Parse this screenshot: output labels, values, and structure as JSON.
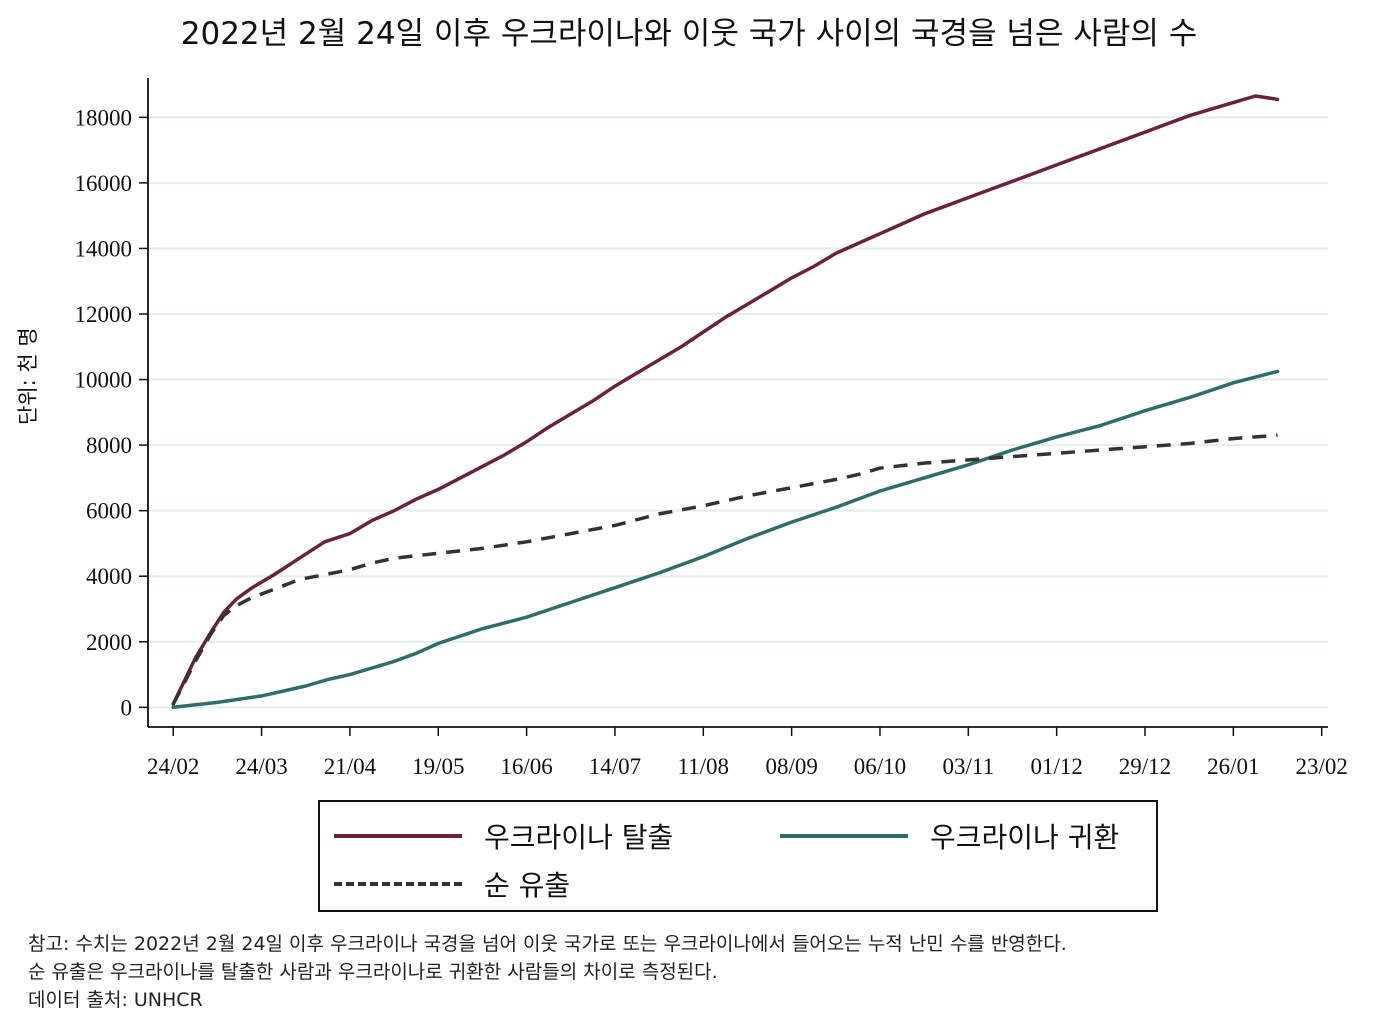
{
  "chart_data": {
    "type": "line",
    "title": "2022년 2월 24일 이후 우크라이나와 이웃 국가 사이의 국경을 넘은 사람의 수",
    "ylabel": "단위: 천 명",
    "xlabel": "",
    "x_tick_labels": [
      "24/02",
      "24/03",
      "21/04",
      "19/05",
      "16/06",
      "14/07",
      "11/08",
      "08/09",
      "06/10",
      "03/11",
      "01/12",
      "29/12",
      "26/01",
      "23/02"
    ],
    "x_tick_days": [
      0,
      28,
      56,
      84,
      112,
      140,
      168,
      196,
      224,
      252,
      280,
      308,
      336,
      364
    ],
    "y_ticks": [
      0,
      2000,
      4000,
      6000,
      8000,
      10000,
      12000,
      14000,
      16000,
      18000
    ],
    "ylim": [
      -600,
      19200
    ],
    "xlim_days": [
      -8,
      366
    ],
    "grid": true,
    "legend_position": "bottom",
    "series": [
      {
        "name": "우크라이나 탈출",
        "color": "#6b2141",
        "dash": "solid",
        "x": [
          0,
          3,
          7,
          12,
          16,
          20,
          25,
          32,
          40,
          48,
          56,
          63,
          70,
          77,
          84,
          91,
          98,
          105,
          112,
          119,
          126,
          133,
          140,
          147,
          154,
          161,
          168,
          175,
          182,
          189,
          196,
          203,
          210,
          217,
          224,
          231,
          238,
          245,
          252,
          259,
          266,
          273,
          280,
          287,
          294,
          301,
          308,
          315,
          322,
          329,
          336,
          343,
          350
        ],
        "y": [
          100,
          700,
          1500,
          2300,
          2900,
          3300,
          3650,
          4050,
          4550,
          5050,
          5300,
          5700,
          6000,
          6350,
          6650,
          7000,
          7350,
          7700,
          8100,
          8550,
          8950,
          9350,
          9800,
          10200,
          10600,
          11000,
          11450,
          11900,
          12300,
          12700,
          13100,
          13450,
          13850,
          14150,
          14450,
          14750,
          15050,
          15300,
          15550,
          15800,
          16050,
          16300,
          16550,
          16800,
          17050,
          17300,
          17550,
          17800,
          18050,
          18250,
          18450,
          18650,
          18550
        ]
      },
      {
        "name": "우크라이나 귀환",
        "color": "#2d6e6a",
        "dash": "solid",
        "x": [
          0,
          14,
          28,
          42,
          49,
          56,
          63,
          70,
          77,
          84,
          98,
          112,
          126,
          140,
          154,
          168,
          182,
          196,
          210,
          224,
          238,
          252,
          266,
          280,
          294,
          308,
          322,
          336,
          350
        ],
        "y": [
          0,
          150,
          350,
          650,
          850,
          1000,
          1200,
          1400,
          1650,
          1950,
          2400,
          2750,
          3200,
          3650,
          4100,
          4600,
          5150,
          5650,
          6100,
          6600,
          7000,
          7400,
          7850,
          8250,
          8600,
          9050,
          9450,
          9900,
          10250
        ]
      },
      {
        "name": "순 유출",
        "color": "#333333",
        "dash": "dashed",
        "x": [
          0,
          3,
          7,
          12,
          16,
          20,
          25,
          32,
          40,
          48,
          56,
          63,
          70,
          84,
          98,
          112,
          126,
          140,
          154,
          168,
          182,
          196,
          210,
          217,
          224,
          238,
          252,
          266,
          280,
          294,
          308,
          322,
          336,
          350
        ],
        "y": [
          100,
          650,
          1400,
          2250,
          2800,
          3100,
          3350,
          3600,
          3900,
          4050,
          4200,
          4400,
          4550,
          4700,
          4850,
          5050,
          5300,
          5550,
          5900,
          6150,
          6450,
          6700,
          6950,
          7100,
          7300,
          7450,
          7550,
          7650,
          7750,
          7850,
          7950,
          8050,
          8200,
          8300
        ]
      }
    ]
  },
  "notes": [
    "참고: 수치는 2022년 2월 24일 이후 우크라이나 국경을 넘어 이웃 국가로 또는 우크라이나에서 들어오는 누적 난민 수를 반영한다.",
    "순 유출은 우크라이나를 탈출한 사람과 우크라이나로 귀환한 사람들의 차이로 측정된다.",
    "데이터 출처: UNHCR"
  ],
  "colors": {
    "axis": "#111111",
    "grid": "#e2eeee",
    "background": "#ffffff"
  }
}
